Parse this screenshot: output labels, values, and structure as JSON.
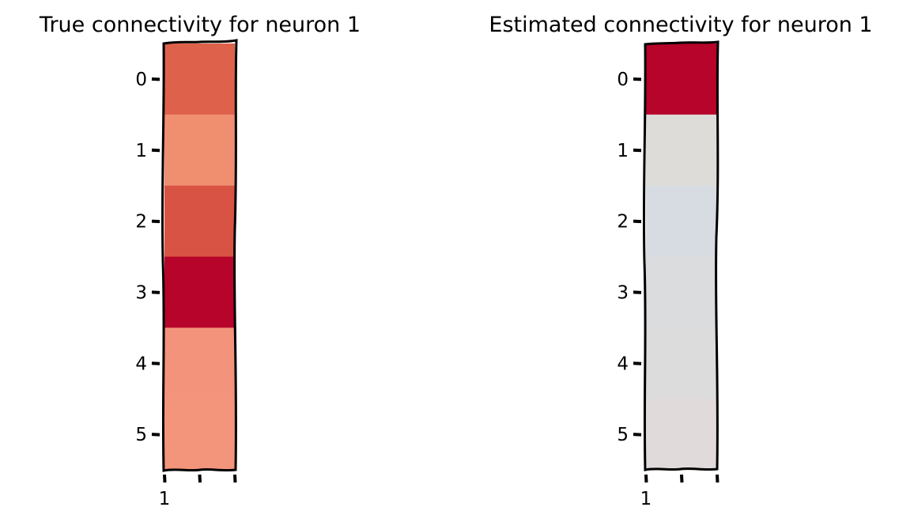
{
  "chart_data": [
    {
      "type": "heatmap",
      "title": "True connectivity for neuron 1",
      "rows": [
        "0",
        "1",
        "2",
        "3",
        "4",
        "5"
      ],
      "columns": [
        "1"
      ],
      "cell_colors": [
        "#de624b",
        "#f08e70",
        "#d85343",
        "#b7042a",
        "#f3937b",
        "#f2957a"
      ],
      "grid": false,
      "legend": "none"
    },
    {
      "type": "heatmap",
      "title": "Estimated connectivity for neuron 1",
      "rows": [
        "0",
        "1",
        "2",
        "3",
        "4",
        "5"
      ],
      "columns": [
        "1"
      ],
      "cell_colors": [
        "#b7042a",
        "#dedcd9",
        "#d7dce2",
        "#dadcde",
        "#dddcdc",
        "#e0dbda"
      ],
      "grid": false,
      "legend": "none"
    }
  ]
}
